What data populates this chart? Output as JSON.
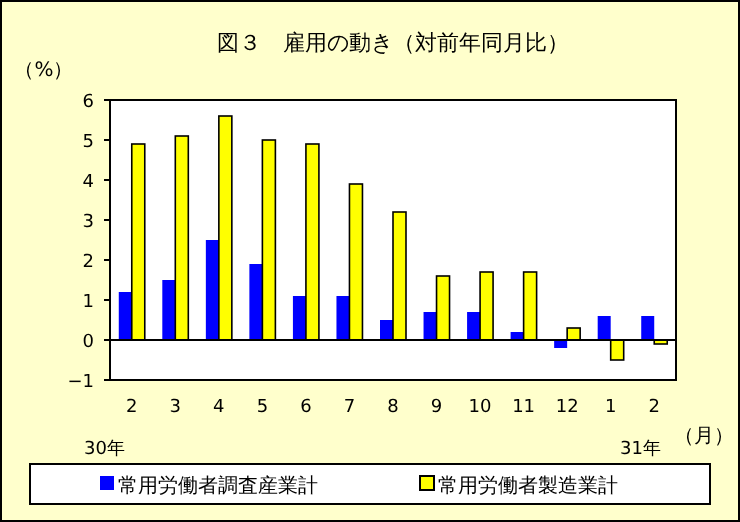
{
  "chart_data": {
    "type": "bar",
    "title": "図３　雇用の動き（対前年同月比）",
    "ylabel": "（%）",
    "xlabel": "（月）",
    "annotations": [
      "30年",
      "31年"
    ],
    "categories": [
      "2",
      "3",
      "4",
      "5",
      "6",
      "7",
      "8",
      "9",
      "10",
      "11",
      "12",
      "1",
      "2"
    ],
    "series": [
      {
        "name": "常用労働者調査産業計",
        "color": "#0000ff",
        "values": [
          1.2,
          1.5,
          2.5,
          1.9,
          1.1,
          1.1,
          0.5,
          0.7,
          0.7,
          0.2,
          -0.2,
          0.6,
          0.6
        ]
      },
      {
        "name": "常用労働者製造業計",
        "color": "#ffff00",
        "values": [
          4.9,
          5.1,
          5.6,
          5.0,
          4.9,
          3.9,
          3.2,
          1.6,
          1.7,
          1.7,
          0.3,
          -0.5,
          -0.1
        ]
      }
    ],
    "ylim": [
      -1,
      6
    ],
    "yticks": [
      -1,
      0,
      1,
      2,
      3,
      4,
      5,
      6
    ],
    "legend": "bottom"
  }
}
